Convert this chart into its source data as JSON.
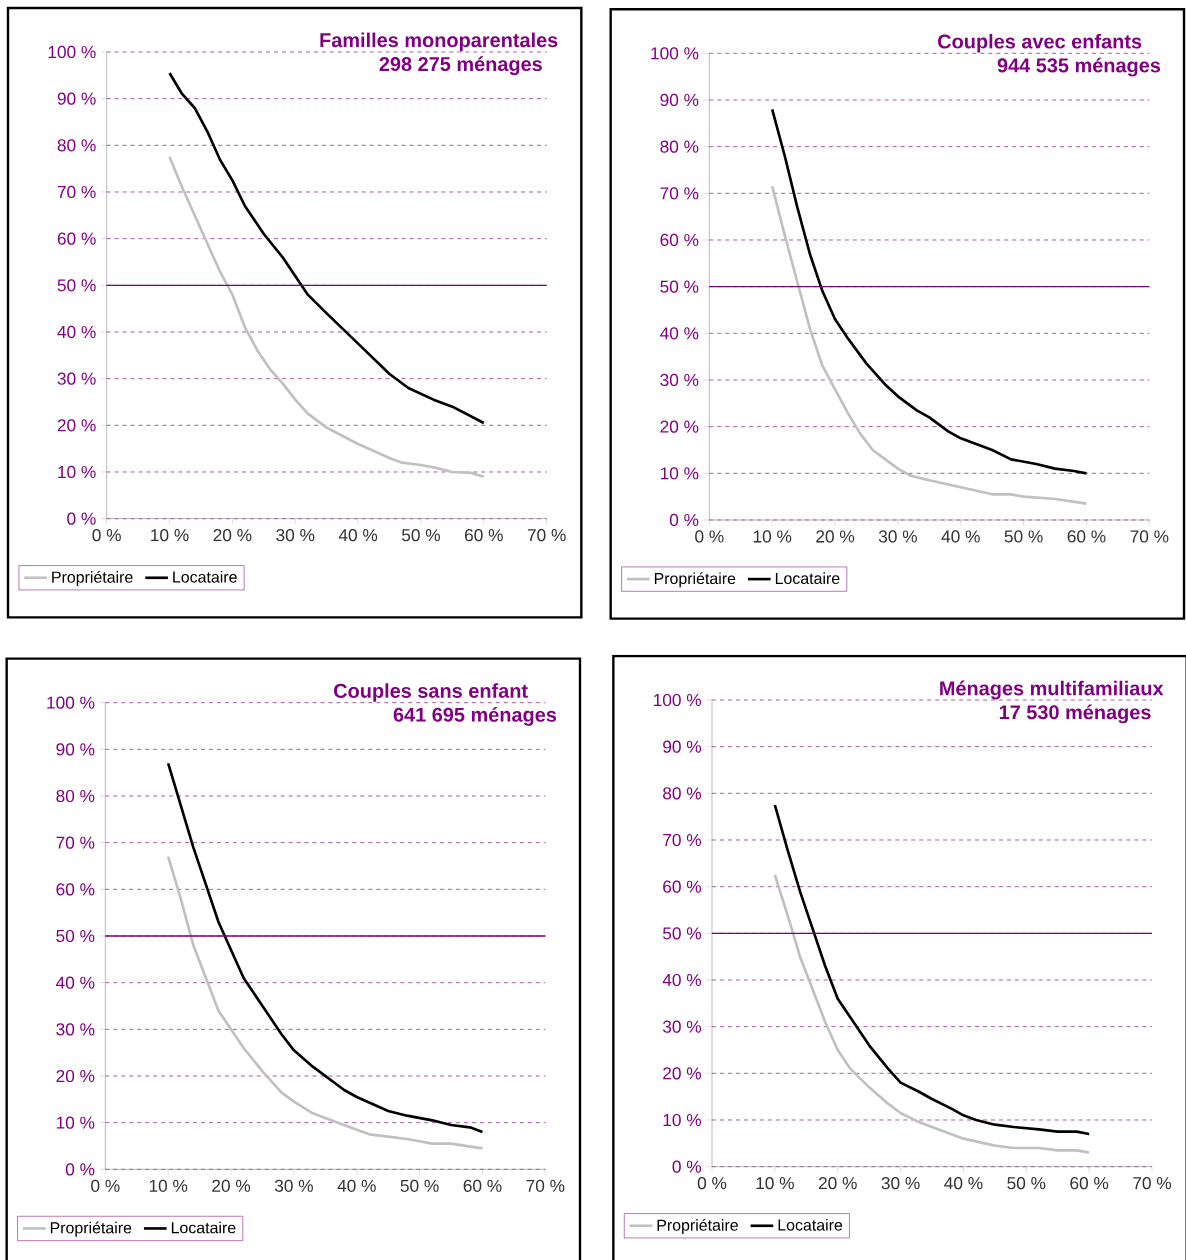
{
  "chart_data": [
    {
      "type": "line",
      "title": "Familles monoparentales",
      "subtitle": "298 275 ménages",
      "xlim": [
        0,
        70
      ],
      "ylim": [
        0,
        100
      ],
      "xticks": [
        {
          "value": 0,
          "label": "0 %"
        },
        {
          "value": 10,
          "label": "10 %"
        },
        {
          "value": 20,
          "label": "20 %"
        },
        {
          "value": 30,
          "label": "30 %"
        },
        {
          "value": 40,
          "label": "40 %"
        },
        {
          "value": 50,
          "label": "50 %"
        },
        {
          "value": 60,
          "label": "60 %"
        },
        {
          "value": 70,
          "label": "70 %"
        }
      ],
      "yticks": [
        {
          "value": 0,
          "label": "0 %"
        },
        {
          "value": 10,
          "label": "10 %"
        },
        {
          "value": 20,
          "label": "20 %"
        },
        {
          "value": 30,
          "label": "30 %"
        },
        {
          "value": 40,
          "label": "40 %"
        },
        {
          "value": 50,
          "label": "50 %"
        },
        {
          "value": 60,
          "label": "60 %"
        },
        {
          "value": 70,
          "label": "70 %"
        },
        {
          "value": 80,
          "label": "80 %"
        },
        {
          "value": 90,
          "label": "90 %"
        },
        {
          "value": 100,
          "label": "100 %"
        }
      ],
      "grid": "y",
      "legend": "bottom",
      "ref_lines": [
        {
          "axis": "y",
          "value": 50,
          "color": "#800080"
        }
      ],
      "series": [
        {
          "name": "Propriétaire",
          "color": "#c0c0c0",
          "x": [
            10,
            12,
            14,
            16,
            18,
            20,
            22,
            24,
            26,
            28,
            30,
            32,
            35,
            40,
            45,
            47,
            50,
            52,
            55,
            58,
            60
          ],
          "values": [
            77.5,
            71,
            65,
            59,
            53,
            48,
            41,
            36,
            32,
            29,
            25.5,
            22.5,
            19.5,
            16,
            13,
            12,
            11.5,
            11,
            10,
            9.8,
            9
          ]
        },
        {
          "name": "Locataire",
          "color": "#000000",
          "x": [
            10,
            12,
            14,
            16,
            18,
            20,
            22,
            25,
            28,
            30,
            32,
            35,
            40,
            45,
            48,
            52,
            55,
            60
          ],
          "values": [
            95.5,
            91,
            88,
            83,
            77,
            72.5,
            67,
            61,
            56,
            52,
            48,
            44,
            37.5,
            31,
            28,
            25.5,
            24,
            20.5
          ]
        }
      ]
    },
    {
      "type": "line",
      "title": "Couples avec enfants",
      "subtitle": "944 535 ménages",
      "xlim": [
        0,
        70
      ],
      "ylim": [
        0,
        100
      ],
      "xticks": [
        {
          "value": 0,
          "label": "0 %"
        },
        {
          "value": 10,
          "label": "10 %"
        },
        {
          "value": 20,
          "label": "20 %"
        },
        {
          "value": 30,
          "label": "30 %"
        },
        {
          "value": 40,
          "label": "40 %"
        },
        {
          "value": 50,
          "label": "50 %"
        },
        {
          "value": 60,
          "label": "60 %"
        },
        {
          "value": 70,
          "label": "70 %"
        }
      ],
      "yticks": [
        {
          "value": 0,
          "label": "0 %"
        },
        {
          "value": 10,
          "label": "10 %"
        },
        {
          "value": 20,
          "label": "20 %"
        },
        {
          "value": 30,
          "label": "30 %"
        },
        {
          "value": 40,
          "label": "40 %"
        },
        {
          "value": 50,
          "label": "50 %"
        },
        {
          "value": 60,
          "label": "60 %"
        },
        {
          "value": 70,
          "label": "70 %"
        },
        {
          "value": 80,
          "label": "80 %"
        },
        {
          "value": 90,
          "label": "90 %"
        },
        {
          "value": 100,
          "label": "100 %"
        }
      ],
      "grid": "y",
      "legend": "bottom",
      "ref_lines": [
        {
          "axis": "y",
          "value": 50,
          "color": "#800080"
        }
      ],
      "series": [
        {
          "name": "Propriétaire",
          "color": "#c0c0c0",
          "x": [
            10,
            12,
            14,
            16,
            18,
            20,
            22,
            24,
            26,
            28,
            30,
            32,
            35,
            40,
            45,
            48,
            50,
            55,
            60
          ],
          "values": [
            71.5,
            61,
            51,
            41,
            33,
            28,
            23,
            18.5,
            15,
            13,
            11,
            9.5,
            8.5,
            7,
            5.5,
            5.5,
            5,
            4.5,
            3.5
          ]
        },
        {
          "name": "Locataire",
          "color": "#000000",
          "x": [
            10,
            12,
            14,
            16,
            18,
            20,
            22,
            25,
            28,
            30,
            33,
            35,
            38,
            40,
            45,
            48,
            52,
            55,
            58,
            60
          ],
          "values": [
            88,
            78,
            67,
            57,
            49,
            43,
            39,
            33.5,
            29,
            26.5,
            23.5,
            22,
            19,
            17.5,
            15,
            13,
            12,
            11,
            10.5,
            10
          ]
        }
      ]
    },
    {
      "type": "line",
      "title": "Couples sans enfant",
      "subtitle": "641 695 ménages",
      "xlim": [
        0,
        70
      ],
      "ylim": [
        0,
        100
      ],
      "xticks": [
        {
          "value": 0,
          "label": "0 %"
        },
        {
          "value": 10,
          "label": "10 %"
        },
        {
          "value": 20,
          "label": "20 %"
        },
        {
          "value": 30,
          "label": "30 %"
        },
        {
          "value": 40,
          "label": "40 %"
        },
        {
          "value": 50,
          "label": "50 %"
        },
        {
          "value": 60,
          "label": "60 %"
        },
        {
          "value": 70,
          "label": "70 %"
        }
      ],
      "yticks": [
        {
          "value": 0,
          "label": "0 %"
        },
        {
          "value": 10,
          "label": "10 %"
        },
        {
          "value": 20,
          "label": "20 %"
        },
        {
          "value": 30,
          "label": "30 %"
        },
        {
          "value": 40,
          "label": "40 %"
        },
        {
          "value": 50,
          "label": "50 %"
        },
        {
          "value": 60,
          "label": "60 %"
        },
        {
          "value": 70,
          "label": "70 %"
        },
        {
          "value": 80,
          "label": "80 %"
        },
        {
          "value": 90,
          "label": "90 %"
        },
        {
          "value": 100,
          "label": "100 %"
        }
      ],
      "grid": "y",
      "legend": "bottom",
      "ref_lines": [
        {
          "axis": "y",
          "value": 50,
          "color": "#800080"
        }
      ],
      "series": [
        {
          "name": "Propriétaire",
          "color": "#c0c0c0",
          "x": [
            10,
            12,
            14,
            16,
            18,
            20,
            22,
            25,
            28,
            30,
            33,
            35,
            40,
            42,
            45,
            48,
            50,
            52,
            55,
            60
          ],
          "values": [
            67,
            58,
            48,
            41,
            34,
            30,
            26,
            21,
            16.5,
            14.5,
            12,
            11,
            8.5,
            7.5,
            7,
            6.5,
            6,
            5.5,
            5.5,
            4.5
          ]
        },
        {
          "name": "Locataire",
          "color": "#000000",
          "x": [
            10,
            12,
            14,
            16,
            18,
            20,
            22,
            25,
            28,
            30,
            33,
            35,
            38,
            40,
            45,
            48,
            52,
            55,
            58,
            60
          ],
          "values": [
            87,
            78,
            69,
            61,
            53,
            47,
            41,
            35,
            29,
            25.5,
            22,
            20,
            17,
            15.5,
            12.5,
            11.5,
            10.5,
            9.5,
            9,
            8
          ]
        }
      ]
    },
    {
      "type": "line",
      "title": "Ménages multifamiliaux",
      "subtitle": "17 530 ménages",
      "xlim": [
        0,
        70
      ],
      "ylim": [
        0,
        100
      ],
      "xticks": [
        {
          "value": 0,
          "label": "0 %"
        },
        {
          "value": 10,
          "label": "10 %"
        },
        {
          "value": 20,
          "label": "20 %"
        },
        {
          "value": 30,
          "label": "30 %"
        },
        {
          "value": 40,
          "label": "40 %"
        },
        {
          "value": 50,
          "label": "50 %"
        },
        {
          "value": 60,
          "label": "60 %"
        },
        {
          "value": 70,
          "label": "70 %"
        }
      ],
      "yticks": [
        {
          "value": 0,
          "label": "0 %"
        },
        {
          "value": 10,
          "label": "10 %"
        },
        {
          "value": 20,
          "label": "20 %"
        },
        {
          "value": 30,
          "label": "30 %"
        },
        {
          "value": 40,
          "label": "40 %"
        },
        {
          "value": 50,
          "label": "50 %"
        },
        {
          "value": 60,
          "label": "60 %"
        },
        {
          "value": 70,
          "label": "70 %"
        },
        {
          "value": 80,
          "label": "80 %"
        },
        {
          "value": 90,
          "label": "90 %"
        },
        {
          "value": 100,
          "label": "100 %"
        }
      ],
      "grid": "y",
      "legend": "bottom",
      "ref_lines": [
        {
          "axis": "y",
          "value": 50,
          "color": "#800080"
        }
      ],
      "series": [
        {
          "name": "Propriétaire",
          "color": "#c0c0c0",
          "x": [
            10,
            12,
            14,
            16,
            18,
            20,
            22,
            25,
            28,
            30,
            33,
            35,
            40,
            45,
            48,
            52,
            55,
            58,
            60
          ],
          "values": [
            62.5,
            54,
            45,
            38,
            31,
            25,
            21,
            17,
            13.5,
            11.5,
            9.5,
            8.5,
            6,
            4.5,
            4,
            4,
            3.5,
            3.5,
            3
          ]
        },
        {
          "name": "Locataire",
          "color": "#000000",
          "x": [
            10,
            12,
            14,
            16,
            18,
            20,
            22,
            25,
            28,
            30,
            33,
            35,
            38,
            40,
            42,
            45,
            48,
            52,
            55,
            58,
            60
          ],
          "values": [
            77.5,
            68,
            59,
            51,
            43,
            36,
            32,
            26,
            21,
            18,
            16,
            14.5,
            12.5,
            11,
            10,
            9,
            8.5,
            8,
            7.5,
            7.5,
            7
          ]
        }
      ]
    }
  ]
}
